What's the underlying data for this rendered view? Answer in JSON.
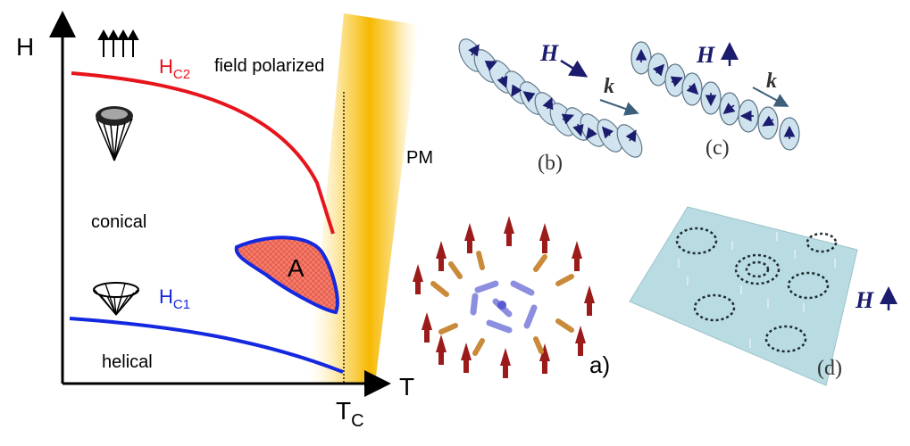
{
  "axes": {
    "y_label": "H",
    "x_label": "T",
    "tc_main": "T",
    "tc_sub": "C"
  },
  "phases": {
    "hc2_main": "H",
    "hc2_sub": "C2",
    "hc1_main": "H",
    "hc1_sub": "C1",
    "field_polarized": "field polarized",
    "conical": "conical",
    "helical": "helical",
    "pm": "PM",
    "a_phase": "A"
  },
  "panels": {
    "a": "a)",
    "b": "(b)",
    "c": "(c)",
    "d": "(d)",
    "h_symbol": "H",
    "k_symbol": "k"
  },
  "colors": {
    "hc2_line": "#e8141b",
    "hc1_line": "#1428e0",
    "a_fill": "#f47b6a",
    "pm_band": "#f8c21a",
    "disc": "#cfe3ef",
    "arrow": "#1c1c6e",
    "lattice": "#b9dce3"
  }
}
